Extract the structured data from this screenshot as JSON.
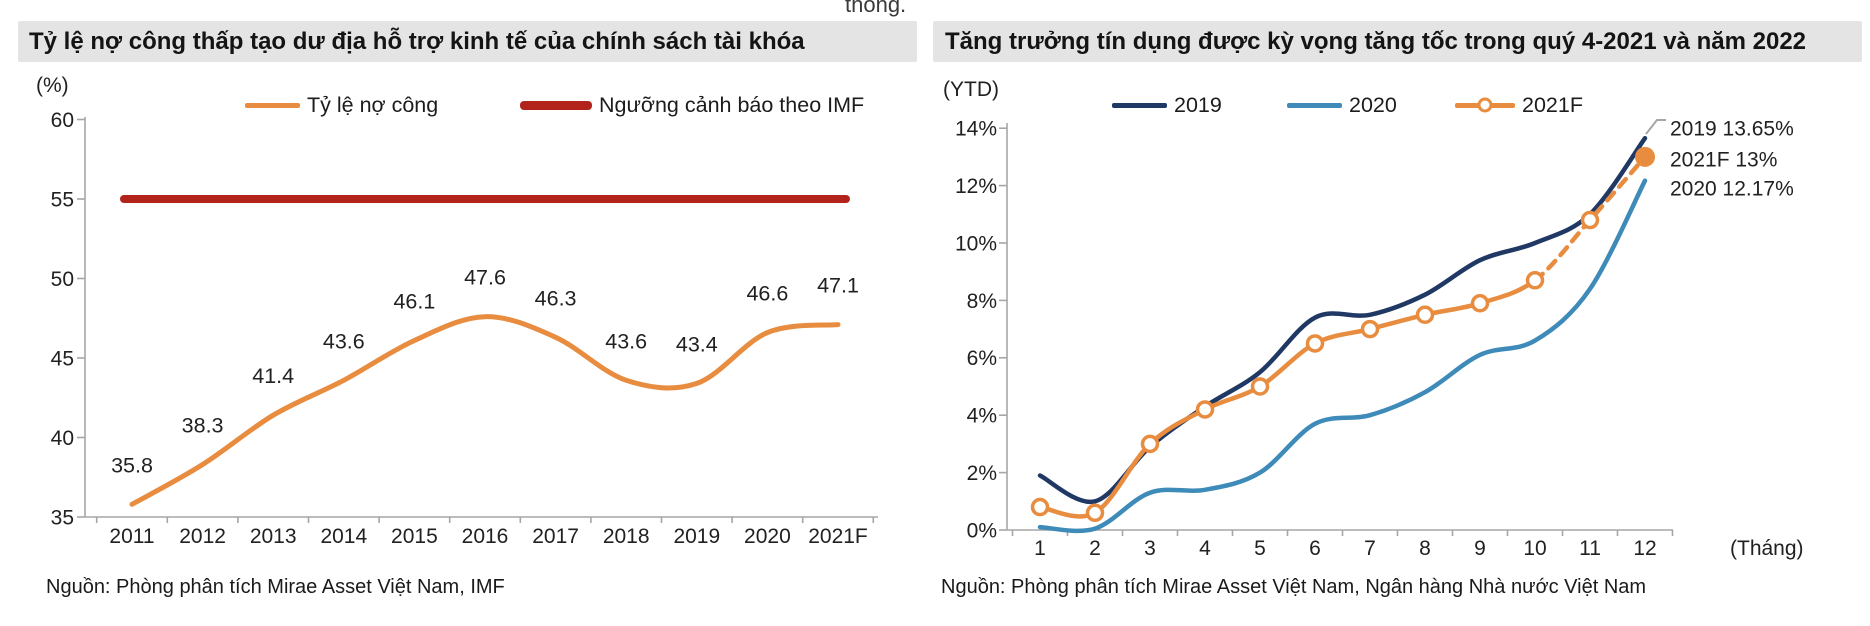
{
  "header": {
    "cropped_text": "thông."
  },
  "left_panel": {
    "title": "Tỷ lệ nợ công thấp tạo dư địa hỗ trợ kinh tế của chính sách tài khóa",
    "unit_label": "(%)",
    "source": "Nguồn: Phòng phân tích Mirae Asset Việt Nam, IMF"
  },
  "right_panel": {
    "title": "Tăng trưởng tín dụng được kỳ vọng tăng tốc trong quý 4-2021 và năm 2022",
    "unit_label": "(YTD)",
    "xlabel": "(Tháng)",
    "source": "Nguồn: Phòng phân tích Mirae Asset Việt Nam, Ngân hàng Nhà nước Việt Nam"
  },
  "chart_data": [
    {
      "type": "line",
      "title": "Tỷ lệ nợ công thấp tạo dư địa hỗ trợ kinh tế của chính sách tài khóa",
      "unit_label": "(%)",
      "categories": [
        "2011",
        "2012",
        "2013",
        "2014",
        "2015",
        "2016",
        "2017",
        "2018",
        "2019",
        "2020",
        "2021F"
      ],
      "series": [
        {
          "name": "Tỷ lệ nợ công",
          "color": "#e88c3f",
          "smooth": true,
          "data_labels": true,
          "values": [
            35.8,
            38.3,
            41.4,
            43.6,
            46.1,
            47.6,
            46.3,
            43.6,
            43.4,
            46.6,
            47.1
          ]
        },
        {
          "name": "Ngưỡng cảnh báo theo IMF",
          "color": "#b2231c",
          "style": "threshold",
          "values": [
            55,
            55,
            55,
            55,
            55,
            55,
            55,
            55,
            55,
            55,
            55
          ]
        }
      ],
      "ylim": [
        35,
        60
      ],
      "yticks": [
        35,
        40,
        45,
        50,
        55,
        60
      ],
      "grid": false,
      "legend_position": "top",
      "source": "Nguồn: Phòng phân tích Mirae Asset Việt Nam, IMF"
    },
    {
      "type": "line",
      "title": "Tăng trưởng tín dụng được kỳ vọng tăng tốc trong quý 4-2021 và năm 2022",
      "unit_label": "(YTD)",
      "x": [
        1,
        2,
        3,
        4,
        5,
        6,
        7,
        8,
        9,
        10,
        11,
        12
      ],
      "xlabel": "(Tháng)",
      "series": [
        {
          "name": "2019",
          "color": "#1f3864",
          "smooth": true,
          "values": [
            1.9,
            1.0,
            2.9,
            4.3,
            5.5,
            7.4,
            7.5,
            8.2,
            9.4,
            10.0,
            11.0,
            13.65
          ]
        },
        {
          "name": "2020",
          "color": "#3e8ab8",
          "smooth": true,
          "values": [
            0.1,
            0.05,
            1.3,
            1.4,
            2.0,
            3.7,
            4.0,
            4.8,
            6.1,
            6.6,
            8.4,
            12.17
          ]
        },
        {
          "name": "2021F",
          "color": "#e88c3f",
          "smooth": true,
          "markers": "circle",
          "dashed_from_index": 9,
          "end_marker": "filled",
          "values": [
            0.8,
            0.6,
            3.0,
            4.2,
            5.0,
            6.5,
            7.0,
            7.5,
            7.9,
            8.7,
            10.8,
            13.0
          ]
        }
      ],
      "ylim": [
        0,
        14
      ],
      "yticks": [
        0,
        2,
        4,
        6,
        8,
        10,
        12,
        14
      ],
      "ytick_format": "percent",
      "grid": false,
      "legend_position": "top",
      "annotations": [
        {
          "text": "2019 13.65%"
        },
        {
          "text": "2021F 13%"
        },
        {
          "text": "2020 12.17%"
        }
      ],
      "source": "Nguồn: Phòng phân tích Mirae Asset Việt Nam, Ngân hàng Nhà nước Việt Nam"
    }
  ]
}
